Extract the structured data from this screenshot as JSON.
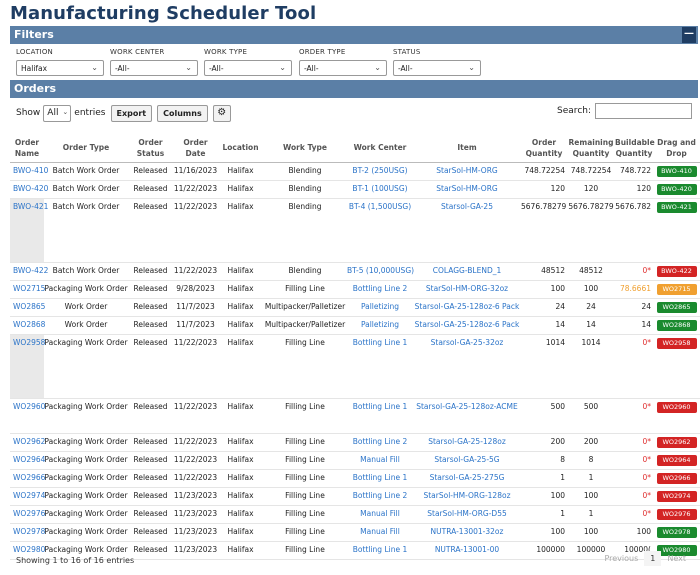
{
  "app_title": "Manufacturing Scheduler Tool",
  "filters": {
    "section_title": "Filters",
    "collapse_label": "—",
    "items": [
      {
        "label": "LOCATION",
        "value": "Halifax"
      },
      {
        "label": "WORK CENTER",
        "value": "-All-"
      },
      {
        "label": "WORK TYPE",
        "value": "-All-"
      },
      {
        "label": "ORDER TYPE",
        "value": "-All-"
      },
      {
        "label": "STATUS",
        "value": "-All-"
      }
    ]
  },
  "orders": {
    "section_title": "Orders",
    "show_label": "Show",
    "entries_value": "All",
    "entries_label": "entries",
    "export_label": "Export",
    "columns_label": "Columns",
    "gear_icon": "⚙",
    "search_label": "Search:",
    "search_value": "",
    "columns": [
      "Order Name",
      "Order Type",
      "Order Status",
      "Order Date",
      "Location",
      "Work Type",
      "Work Center",
      "Item",
      "Order Quantity",
      "Remaining Quantity",
      "Buildable Quantity",
      "Drag and Drop"
    ],
    "rows": [
      {
        "name": "BWO-410",
        "type": "Batch Work Order",
        "status": "Released",
        "date": "11/16/2023",
        "location": "Halifax",
        "work_type": "Blending",
        "work_center": "BT-2 (250USG)",
        "item": "StarSol-HM-ORG",
        "qty": "748.72254",
        "remaining": "748.72254",
        "buildable": "748.722",
        "badge": "BWO-410",
        "badge_color": "green",
        "buildable_style": "normal",
        "height": "short"
      },
      {
        "name": "BWO-420",
        "type": "Batch Work Order",
        "status": "Released",
        "date": "11/22/2023",
        "location": "Halifax",
        "work_type": "Blending",
        "work_center": "BT-1 (100USG)",
        "item": "StarSol-HM-ORG",
        "qty": "120",
        "remaining": "120",
        "buildable": "120",
        "badge": "BWO-420",
        "badge_color": "green",
        "buildable_style": "normal",
        "height": "short"
      },
      {
        "name": "BWO-421",
        "type": "Batch Work Order",
        "status": "Released",
        "date": "11/22/2023",
        "location": "Halifax",
        "work_type": "Blending",
        "work_center": "BT-4 (1,500USG)",
        "item": "Starsol-GA-25",
        "qty": "5676.78279",
        "remaining": "5676.78279",
        "buildable": "5676.782",
        "badge": "BWO-421",
        "badge_color": "green",
        "buildable_style": "normal",
        "height": "tall"
      },
      {
        "name": "BWO-422",
        "type": "Batch Work Order",
        "status": "Released",
        "date": "11/22/2023",
        "location": "Halifax",
        "work_type": "Blending",
        "work_center": "BT-5 (10,000USG)",
        "item": "COLAGG-BLEND_1",
        "qty": "48512",
        "remaining": "48512",
        "buildable": "0*",
        "badge": "BWO-422",
        "badge_color": "red",
        "buildable_style": "zero",
        "height": "short"
      },
      {
        "name": "WO2715",
        "type": "Packaging Work Order",
        "status": "Released",
        "date": "9/28/2023",
        "location": "Halifax",
        "work_type": "Filling Line",
        "work_center": "Bottling Line 2",
        "item": "StarSol-HM-ORG-32oz",
        "qty": "100",
        "remaining": "100",
        "buildable": "78.6661",
        "badge": "WO2715",
        "badge_color": "orange",
        "buildable_style": "orange",
        "height": "short"
      },
      {
        "name": "WO2865",
        "type": "Work Order",
        "status": "Released",
        "date": "11/7/2023",
        "location": "Halifax",
        "work_type": "Multipacker/Palletizer",
        "work_center": "Palletizing",
        "item": "Starsol-GA-25-128oz-6 Pack",
        "qty": "24",
        "remaining": "24",
        "buildable": "24",
        "badge": "WO2865",
        "badge_color": "green",
        "buildable_style": "normal",
        "height": "short"
      },
      {
        "name": "WO2868",
        "type": "Work Order",
        "status": "Released",
        "date": "11/7/2023",
        "location": "Halifax",
        "work_type": "Multipacker/Palletizer",
        "work_center": "Palletizing",
        "item": "Starsol-GA-25-128oz-6 Pack",
        "qty": "14",
        "remaining": "14",
        "buildable": "14",
        "badge": "WO2868",
        "badge_color": "green",
        "buildable_style": "normal",
        "height": "short"
      },
      {
        "name": "WO2958",
        "type": "Packaging Work Order",
        "status": "Released",
        "date": "11/22/2023",
        "location": "Halifax",
        "work_type": "Filling Line",
        "work_center": "Bottling Line 1",
        "item": "Starsol-GA-25-32oz",
        "qty": "1014",
        "remaining": "1014",
        "buildable": "0*",
        "badge": "WO2958",
        "badge_color": "red",
        "buildable_style": "zero",
        "height": "tall"
      },
      {
        "name": "WO2960",
        "type": "Packaging Work Order",
        "status": "Released",
        "date": "11/22/2023",
        "location": "Halifax",
        "work_type": "Filling Line",
        "work_center": "Bottling Line 1",
        "item": "Starsol-GA-25-128oz-ACME",
        "qty": "500",
        "remaining": "500",
        "buildable": "0*",
        "badge": "WO2960",
        "badge_color": "red",
        "buildable_style": "zero",
        "height": "tall2"
      },
      {
        "name": "WO2962",
        "type": "Packaging Work Order",
        "status": "Released",
        "date": "11/22/2023",
        "location": "Halifax",
        "work_type": "Filling Line",
        "work_center": "Bottling Line 2",
        "item": "Starsol-GA-25-128oz",
        "qty": "200",
        "remaining": "200",
        "buildable": "0*",
        "badge": "WO2962",
        "badge_color": "red",
        "buildable_style": "zero",
        "height": "short"
      },
      {
        "name": "WO2964",
        "type": "Packaging Work Order",
        "status": "Released",
        "date": "11/22/2023",
        "location": "Halifax",
        "work_type": "Filling Line",
        "work_center": "Manual Fill",
        "item": "Starsol-GA-25-5G",
        "qty": "8",
        "remaining": "8",
        "buildable": "0*",
        "badge": "WO2964",
        "badge_color": "red",
        "buildable_style": "zero",
        "height": "short"
      },
      {
        "name": "WO2966",
        "type": "Packaging Work Order",
        "status": "Released",
        "date": "11/22/2023",
        "location": "Halifax",
        "work_type": "Filling Line",
        "work_center": "Bottling Line 1",
        "item": "Starsol-GA-25-275G",
        "qty": "1",
        "remaining": "1",
        "buildable": "0*",
        "badge": "WO2966",
        "badge_color": "red",
        "buildable_style": "zero",
        "height": "short"
      },
      {
        "name": "WO2974",
        "type": "Packaging Work Order",
        "status": "Released",
        "date": "11/23/2023",
        "location": "Halifax",
        "work_type": "Filling Line",
        "work_center": "Bottling Line 2",
        "item": "StarSol-HM-ORG-128oz",
        "qty": "100",
        "remaining": "100",
        "buildable": "0*",
        "badge": "WO2974",
        "badge_color": "red",
        "buildable_style": "zero",
        "height": "short"
      },
      {
        "name": "WO2976",
        "type": "Packaging Work Order",
        "status": "Released",
        "date": "11/23/2023",
        "location": "Halifax",
        "work_type": "Filling Line",
        "work_center": "Manual Fill",
        "item": "StarSol-HM-ORG-D55",
        "qty": "1",
        "remaining": "1",
        "buildable": "0*",
        "badge": "WO2976",
        "badge_color": "red",
        "buildable_style": "zero",
        "height": "short"
      },
      {
        "name": "WO2978",
        "type": "Packaging Work Order",
        "status": "Released",
        "date": "11/23/2023",
        "location": "Halifax",
        "work_type": "Filling Line",
        "work_center": "Manual Fill",
        "item": "NUTRA-13001-32oz",
        "qty": "100",
        "remaining": "100",
        "buildable": "100",
        "badge": "WO2978",
        "badge_color": "green",
        "buildable_style": "normal",
        "height": "short"
      },
      {
        "name": "WO2980",
        "type": "Packaging Work Order",
        "status": "Released",
        "date": "11/23/2023",
        "location": "Halifax",
        "work_type": "Filling Line",
        "work_center": "Bottling Line 1",
        "item": "NUTRA-13001-00",
        "qty": "100000",
        "remaining": "100000",
        "buildable": "10000(",
        "badge": "WO2980",
        "badge_color": "green",
        "buildable_style": "normal",
        "height": "short"
      }
    ],
    "footer_info": "Showing 1 to 16 of 16 entries",
    "pager": {
      "previous": "Previous",
      "current": "1",
      "next": "Next"
    }
  },
  "colors": {
    "header_bar": "#5b7fa6",
    "title": "#1f3d63",
    "link": "#2a73c8",
    "badge_green": "#1a8a2e",
    "badge_red": "#d32424",
    "badge_orange": "#f0a030"
  }
}
